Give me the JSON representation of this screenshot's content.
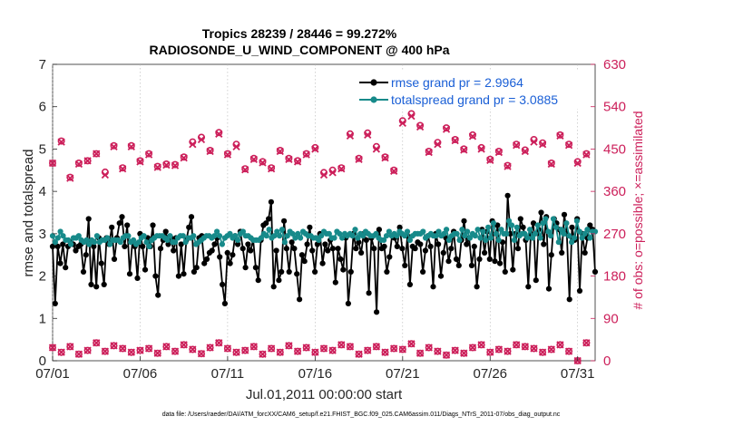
{
  "chart_data": {
    "type": "line",
    "title_line1": "Tropics 28239 / 28446 = 99.272%",
    "title_line2": "RADIOSONDE_U_WIND_COMPONENT @ 400 hPa",
    "xlabel": "Jul.01,2011 00:00:00 start",
    "ylabel_left": "rmse and totalspread",
    "ylabel_right": "# of obs: o=possible; ×=assimilated",
    "footnote": "data file: /Users/raeder/DAI/ATM_forcXX/CAM6_setup/f.e21.FHIST_BGC.f09_025.CAM6assim.011/Diags_NTrS_2011-07/obs_diag_output.nc",
    "x_range": [
      1,
      32
    ],
    "ylim_left": [
      0,
      7
    ],
    "ylim_right": [
      0,
      630
    ],
    "x_ticks": [
      {
        "value": 1,
        "label": "07/01"
      },
      {
        "value": 6,
        "label": "07/06"
      },
      {
        "value": 11,
        "label": "07/11"
      },
      {
        "value": 16,
        "label": "07/16"
      },
      {
        "value": 21,
        "label": "07/21"
      },
      {
        "value": 26,
        "label": "07/26"
      },
      {
        "value": 31,
        "label": "07/31"
      }
    ],
    "y_ticks_left": [
      "0",
      "1",
      "2",
      "3",
      "4",
      "5",
      "6",
      "7"
    ],
    "y_ticks_right": [
      "0",
      "90",
      "180",
      "270",
      "360",
      "450",
      "540",
      "630"
    ],
    "legend": [
      {
        "label": "rmse grand pr = 2.9964",
        "color": "#000000"
      },
      {
        "label": "totalspread grand pr = 3.0885",
        "color": "#178a8a"
      }
    ],
    "series": [
      {
        "name": "rmse",
        "axis": "left",
        "color": "#000000",
        "values": [
          2.7,
          1.35,
          2.7,
          2.3,
          2.75,
          2.2,
          2.7,
          2.8,
          2.75,
          2.6,
          2.7,
          2.75,
          2.1,
          2.5,
          3.35,
          1.8,
          2.7,
          1.75,
          2.9,
          2.3,
          1.8,
          2.9,
          2.75,
          3.15,
          2.4,
          2.9,
          3.25,
          3.4,
          2.7,
          3.2,
          2.05,
          2.8,
          2.7,
          1.95,
          3.0,
          2.7,
          2.15,
          2.9,
          2.7,
          3.2,
          2.0,
          1.55,
          2.65,
          2.85,
          3.05,
          2.75,
          2.9,
          2.6,
          2.9,
          2.0,
          2.75,
          2.05,
          2.85,
          3.15,
          3.4,
          2.1,
          2.2,
          2.9,
          2.95,
          2.3,
          2.4,
          2.55,
          2.6,
          2.75,
          2.9,
          2.45,
          1.8,
          1.35,
          2.55,
          2.3,
          2.5,
          2.95,
          2.75,
          3.05,
          2.65,
          2.2,
          2.75,
          2.6,
          2.85,
          2.2,
          1.9,
          2.85,
          3.2,
          3.25,
          3.35,
          3.75,
          1.75,
          2.6,
          1.9,
          2.1,
          3.3,
          2.65,
          2.1,
          2.8,
          2.65,
          2.05,
          1.45,
          2.5,
          2.35,
          2.75,
          3.15,
          2.6,
          2.1,
          2.75,
          3.0,
          2.3,
          2.75,
          2.6,
          2.85,
          2.65,
          1.85,
          2.65,
          2.4,
          2.15,
          2.9,
          1.35,
          2.1,
          3.0,
          2.65,
          2.8,
          2.55,
          3.0,
          2.85,
          1.6,
          2.9,
          2.65,
          1.15,
          3.1,
          2.65,
          2.7,
          2.1,
          2.45,
          2.95,
          2.9,
          2.7,
          3.15,
          2.65,
          2.25,
          2.95,
          1.8,
          2.7,
          2.65,
          2.8,
          2.75,
          2.1,
          2.6,
          2.95,
          2.7,
          1.75,
          3.0,
          2.75,
          2.0,
          2.55,
          2.9,
          2.35,
          2.65,
          3.05,
          2.4,
          2.25,
          2.85,
          3.3,
          2.75,
          2.9,
          2.25,
          2.7,
          1.75,
          2.4,
          3.1,
          2.55,
          3.05,
          2.4,
          3.3,
          2.35,
          3.2,
          2.3,
          2.8,
          2.1,
          3.9,
          3.0,
          2.15,
          3.0,
          2.65,
          3.35,
          3.15,
          2.85,
          1.75,
          3.0,
          3.25,
          1.9,
          3.1,
          3.5,
          2.75,
          3.4,
          1.7,
          2.5,
          3.35,
          3.25,
          3.1,
          2.55,
          3.45,
          3.0,
          1.45,
          3.15,
          2.85,
          3.35,
          1.65,
          3.0,
          2.55,
          2.9,
          3.2,
          3.1,
          2.1
        ]
      },
      {
        "name": "totalspread",
        "axis": "left",
        "color": "#178a8a",
        "values": [
          2.95,
          2.8,
          2.9,
          3.05,
          2.95,
          2.85,
          2.85,
          2.75,
          2.9,
          2.9,
          2.95,
          2.85,
          2.8,
          2.85,
          2.75,
          2.85,
          2.8,
          2.95,
          2.8,
          2.85,
          2.85,
          2.9,
          2.75,
          2.85,
          2.85,
          2.85,
          2.8,
          2.9,
          2.95,
          2.95,
          2.8,
          2.85,
          2.75,
          2.8,
          2.9,
          2.95,
          2.8,
          2.7,
          2.85,
          2.9,
          2.95,
          2.95,
          2.95,
          2.9,
          2.85,
          2.95,
          2.8,
          2.8,
          2.9,
          2.95,
          2.95,
          2.8,
          2.9,
          2.9,
          2.95,
          2.75,
          2.8,
          2.85,
          2.9,
          2.95,
          2.95,
          2.9,
          2.95,
          3.05,
          2.95,
          2.75,
          2.9,
          2.95,
          3.0,
          2.9,
          2.95,
          2.85,
          3.0,
          3.05,
          2.95,
          2.95,
          2.9,
          2.85,
          2.85,
          2.85,
          2.9,
          3.0,
          2.95,
          3.1,
          2.9,
          2.95,
          3.05,
          2.95,
          3.1,
          2.8,
          2.95,
          3.05,
          3.0,
          2.9,
          3.0,
          2.9,
          3.05,
          3.0,
          2.95,
          2.95,
          2.9,
          2.9,
          2.85,
          2.95,
          3.05,
          3.0,
          3.0,
          2.9,
          2.9,
          3.05,
          3.0,
          2.9,
          3.0,
          2.95,
          3.0,
          2.95,
          3.1,
          2.9,
          3.0,
          2.95,
          3.05,
          3.0,
          2.95,
          2.95,
          3.0,
          2.9,
          2.85,
          2.85,
          2.95,
          3.05,
          2.95,
          3.0,
          2.95,
          3.05,
          3.0,
          2.95,
          3.05,
          2.85,
          2.95,
          3.0,
          3.0,
          3.0,
          3.05,
          2.9,
          2.95,
          3.0,
          2.95,
          2.95,
          3.05,
          2.95,
          3.0,
          3.1,
          2.85,
          2.95,
          3.0,
          3.0,
          2.85,
          3.1,
          2.95,
          3.05,
          2.9,
          3.0,
          2.95,
          3.1,
          2.9,
          3.05,
          2.85,
          3.15,
          2.9,
          3.25,
          3.0,
          2.85,
          3.1,
          3.0,
          3.0,
          3.3,
          3.2,
          2.85,
          3.15,
          2.95,
          3.0,
          3.0,
          2.9,
          3.1,
          2.9,
          3.0,
          3.2,
          2.9,
          3.25,
          3.35,
          3.05,
          2.95,
          3.35,
          3.15,
          2.8,
          3.1,
          3.0,
          3.25,
          2.95,
          2.8,
          2.9,
          3.3,
          3.05,
          2.9,
          3.0,
          3.1,
          2.9,
          3.05,
          3.05
        ]
      },
      {
        "name": "obs_possible",
        "axis": "right",
        "color": "#cc1f5a",
        "marker": "circle",
        "x": [
          1,
          1.5,
          2,
          2.5,
          3,
          3.5,
          4,
          4.5,
          5,
          5.5,
          6,
          6.5,
          7,
          7.5,
          8,
          8.5,
          9,
          9.5,
          10,
          10.5,
          11,
          11.5,
          12,
          12.5,
          13,
          13.5,
          14,
          14.5,
          15,
          15.5,
          16,
          16.5,
          17,
          17.5,
          18,
          18.5,
          19,
          19.5,
          20,
          20.5,
          21,
          21.5,
          22,
          22.5,
          23,
          23.5,
          24,
          24.5,
          25,
          25.5,
          26,
          26.5,
          27,
          27.5,
          28,
          28.5,
          29,
          29.5,
          30,
          30.5,
          31,
          31.5
        ],
        "values": [
          420,
          467,
          390,
          420,
          425,
          440,
          401,
          457,
          410,
          457,
          425,
          440,
          413,
          418,
          417,
          433,
          465,
          475,
          447,
          485,
          440,
          460,
          408,
          430,
          423,
          410,
          447,
          430,
          425,
          440,
          453,
          400,
          405,
          410,
          482,
          430,
          484,
          455,
          433,
          405,
          510,
          525,
          500,
          445,
          464,
          495,
          470,
          450,
          480,
          453,
          428,
          445,
          415,
          460,
          448,
          470,
          463,
          420,
          480,
          460,
          423,
          440
        ],
        "small_values": [
          28,
          18,
          30,
          14,
          22,
          38,
          20,
          32,
          26,
          18,
          22,
          26,
          16,
          30,
          20,
          34,
          24,
          15,
          28,
          38,
          26,
          18,
          22,
          30,
          14,
          26,
          18,
          32,
          20,
          28,
          18,
          26,
          22,
          34,
          30,
          14,
          22,
          30,
          18,
          26,
          24,
          36,
          16,
          28,
          20,
          12,
          22,
          16,
          28,
          34,
          18,
          24,
          20,
          34,
          30,
          26,
          18,
          24,
          34,
          20,
          0,
          38
        ]
      },
      {
        "name": "obs_assimilated",
        "axis": "right",
        "color": "#cc1f5a",
        "marker": "x",
        "x": [
          1,
          1.5,
          2,
          2.5,
          3,
          3.5,
          4,
          4.5,
          5,
          5.5,
          6,
          6.5,
          7,
          7.5,
          8,
          8.5,
          9,
          9.5,
          10,
          10.5,
          11,
          11.5,
          12,
          12.5,
          13,
          13.5,
          14,
          14.5,
          15,
          15.5,
          16,
          16.5,
          17,
          17.5,
          18,
          18.5,
          19,
          19.5,
          20,
          20.5,
          21,
          21.5,
          22,
          22.5,
          23,
          23.5,
          24,
          24.5,
          25,
          25.5,
          26,
          26.5,
          27,
          27.5,
          28,
          28.5,
          29,
          29.5,
          30,
          30.5,
          31,
          31.5
        ],
        "values": [
          420,
          465,
          388,
          418,
          425,
          440,
          395,
          455,
          408,
          455,
          423,
          438,
          411,
          416,
          415,
          431,
          460,
          470,
          445,
          482,
          438,
          455,
          406,
          428,
          421,
          408,
          445,
          428,
          423,
          438,
          450,
          395,
          400,
          408,
          478,
          428,
          480,
          450,
          431,
          403,
          505,
          520,
          497,
          443,
          460,
          492,
          468,
          448,
          477,
          450,
          426,
          443,
          413,
          458,
          445,
          465,
          460,
          418,
          478,
          458,
          420,
          438
        ],
        "small_values": [
          28,
          18,
          30,
          14,
          22,
          38,
          20,
          32,
          26,
          18,
          22,
          26,
          16,
          30,
          20,
          34,
          24,
          15,
          28,
          38,
          26,
          18,
          22,
          30,
          14,
          26,
          18,
          32,
          20,
          28,
          18,
          26,
          22,
          34,
          30,
          14,
          22,
          30,
          18,
          26,
          24,
          36,
          16,
          28,
          20,
          12,
          22,
          16,
          28,
          34,
          18,
          24,
          20,
          34,
          30,
          26,
          18,
          24,
          34,
          20,
          0,
          38
        ]
      }
    ]
  }
}
